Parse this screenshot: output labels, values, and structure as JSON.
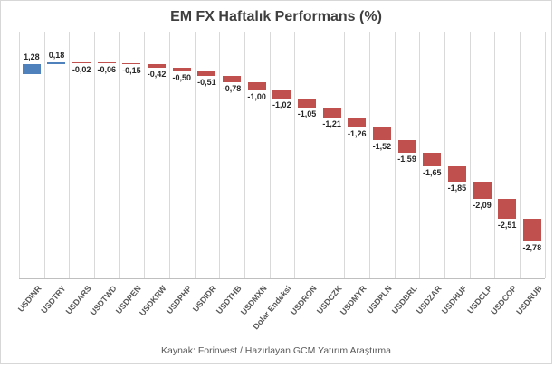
{
  "footer": "Kaynak: Forinvest / Hazırlayan GCM Yatırım Araştırma",
  "colors": {
    "positive_bar": "#4f81bd",
    "negative_bar": "#c0504d",
    "gridline": "#d9d9d9",
    "axis_line": "#bfbfbf",
    "title_text": "#3f3f3f",
    "data_label_text": "#262626",
    "axis_label_text": "#595959",
    "footer_text": "#595959",
    "chart_border": "#d7d7d7"
  },
  "chart_data": {
    "type": "bar",
    "subtype": "waterfall-cascade",
    "title": "EM FX Haftalık Performans (%)",
    "xlabel": "",
    "ylabel": "",
    "legend": "none",
    "grid": "vertical-only",
    "ylim": [
      -25,
      5
    ],
    "categories": [
      "USDINR",
      "USDTRY",
      "USDARS",
      "USDTWD",
      "USDPEN",
      "USDKRW",
      "USDPHP",
      "USDIDR",
      "USDTHB",
      "USDMXN",
      "Dolar Endeksi",
      "USDRON",
      "USDCZK",
      "USDMYR",
      "USDPLN",
      "USDBRL",
      "USDZAR",
      "USDHUF",
      "USDCLP",
      "USDCOP",
      "USDRUB"
    ],
    "values": [
      1.28,
      0.18,
      -0.02,
      -0.06,
      -0.15,
      -0.42,
      -0.5,
      -0.51,
      -0.78,
      -1.0,
      -1.02,
      -1.05,
      -1.21,
      -1.26,
      -1.52,
      -1.59,
      -1.65,
      -1.85,
      -2.09,
      -2.51,
      -2.78
    ],
    "data_labels": [
      "1,28",
      "0,18",
      "-0,02",
      "-0,06",
      "-0,15",
      "-0,42",
      "-0,50",
      "-0,51",
      "-0,78",
      "-1,00",
      "-1,02",
      "-1,05",
      "-1,21",
      "-1,26",
      "-1,52",
      "-1,59",
      "-1,65",
      "-1,85",
      "-2,09",
      "-2,51",
      "-2,78"
    ]
  }
}
